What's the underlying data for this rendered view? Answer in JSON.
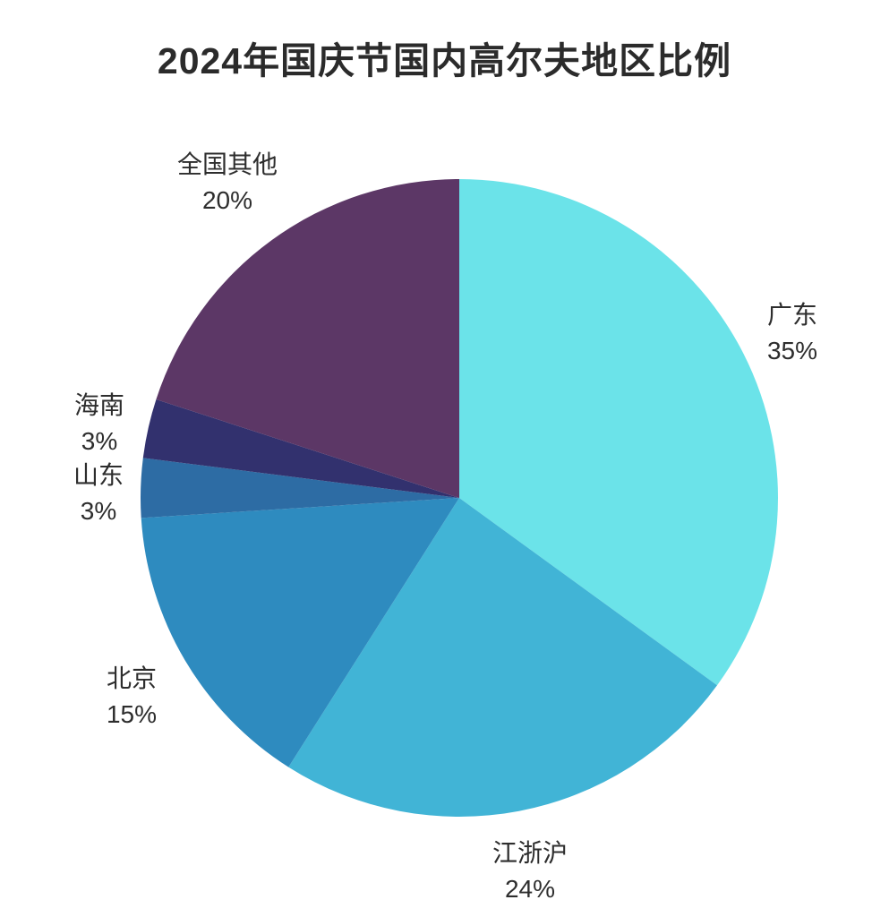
{
  "chart_data": {
    "type": "pie",
    "title": "2024年国庆节国内高尔夫地区比例",
    "categories": [
      "广东",
      "江浙沪",
      "北京",
      "山东",
      "海南",
      "全国其他"
    ],
    "values": [
      35,
      24,
      15,
      3,
      3,
      20
    ],
    "unit": "%",
    "colors": [
      "#6be3e9",
      "#41b4d6",
      "#2e8bbf",
      "#2d6ca4",
      "#32316e",
      "#5c3766"
    ],
    "slice_ids": [
      "guangdong",
      "jiangzhehu",
      "beijing",
      "shandong",
      "hainan",
      "others"
    ],
    "start_angle_deg": 0,
    "direction": "clockwise",
    "legend": "none",
    "labels": [
      {
        "name": "广东",
        "pct": "35%"
      },
      {
        "name": "江浙沪",
        "pct": "24%"
      },
      {
        "name": "北京",
        "pct": "15%"
      },
      {
        "name": "山东",
        "pct": "3%"
      },
      {
        "name": "海南",
        "pct": "3%"
      },
      {
        "name": "全国其他",
        "pct": "20%"
      }
    ]
  }
}
